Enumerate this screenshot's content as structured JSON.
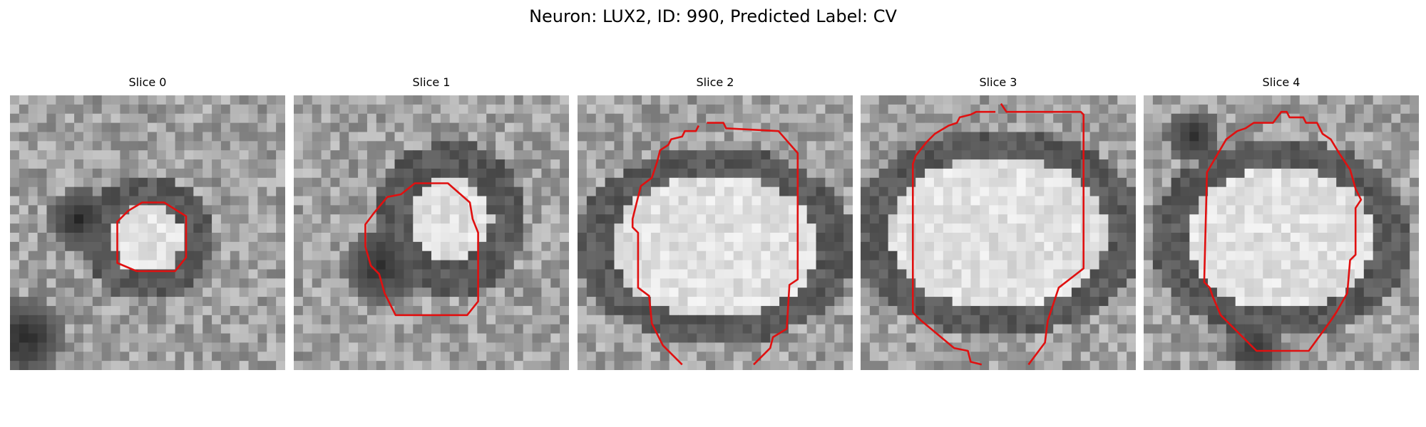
{
  "figure": {
    "title": "Neuron: LUX2, ID: 990, Predicted Label: CV"
  },
  "panels": [
    {
      "title": "Slice 0",
      "contour_color": "#e01010"
    },
    {
      "title": "Slice 1",
      "contour_color": "#e01010"
    },
    {
      "title": "Slice 2",
      "contour_color": "#e01010"
    },
    {
      "title": "Slice 3",
      "contour_color": "#e01010"
    },
    {
      "title": "Slice 4",
      "contour_color": "#e01010"
    }
  ]
}
